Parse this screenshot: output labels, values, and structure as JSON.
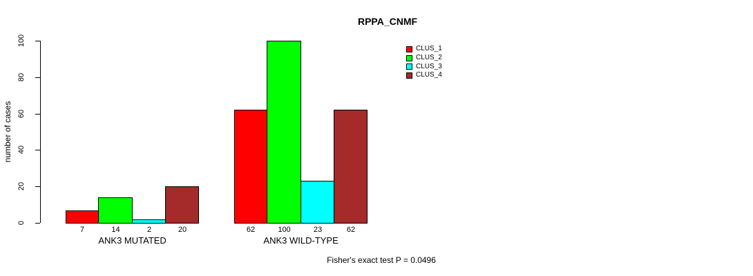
{
  "chart_data": {
    "type": "bar",
    "title": "RPPA_CNMF",
    "ylabel": "number of cases",
    "xlabel": "",
    "categories": [
      "ANK3 MUTATED",
      "ANK3 WILD-TYPE"
    ],
    "series": [
      {
        "name": "CLUS_1",
        "color": "#FF0000",
        "values": [
          7,
          62
        ]
      },
      {
        "name": "CLUS_2",
        "color": "#00FF00",
        "values": [
          14,
          100
        ]
      },
      {
        "name": "CLUS_3",
        "color": "#00FFFF",
        "values": [
          2,
          23
        ]
      },
      {
        "name": "CLUS_4",
        "color": "#A52A2A",
        "values": [
          20,
          62
        ]
      }
    ],
    "ylim": [
      0,
      100
    ],
    "yticks": [
      0,
      20,
      40,
      60,
      80,
      100
    ],
    "show_bar_values": true,
    "grid": false,
    "legend_position": "top-right-inside",
    "annotation": "Fisher's exact test P = 0.0496"
  }
}
